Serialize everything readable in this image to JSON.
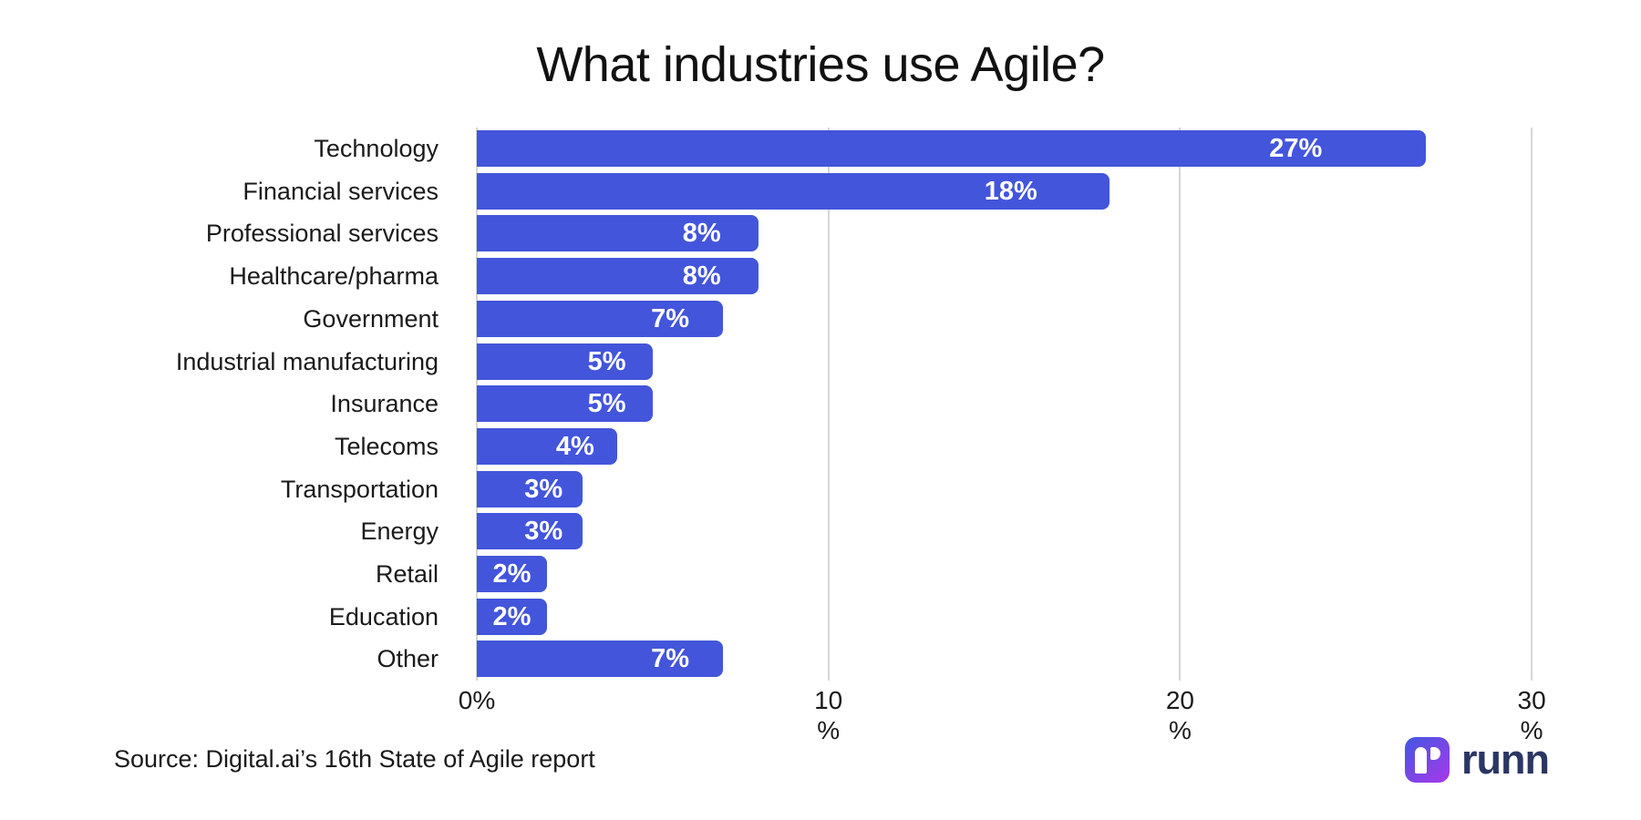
{
  "title": "What industries use Agile?",
  "source_note": "Source: Digital.ai’s 16th State of Agile report",
  "logo": {
    "wordmark": "runn",
    "wordmark_color": "#2B3663",
    "mark_gradient_start": "#4656E2",
    "mark_gradient_end": "#A43AEA"
  },
  "chart_data": {
    "type": "bar",
    "orientation": "horizontal",
    "title": "What industries use Agile?",
    "categories": [
      "Technology",
      "Financial services",
      "Professional services",
      "Healthcare/pharma",
      "Government",
      "Industrial manufacturing",
      "Insurance",
      "Telecoms",
      "Transportation",
      "Energy",
      "Retail",
      "Education",
      "Other"
    ],
    "values": [
      27,
      18,
      8,
      8,
      7,
      5,
      5,
      4,
      3,
      3,
      2,
      2,
      7
    ],
    "value_labels": [
      "27%",
      "18%",
      "8%",
      "8%",
      "7%",
      "5%",
      "5%",
      "4%",
      "3%",
      "3%",
      "2%",
      "2%",
      "7%"
    ],
    "xlabel": "%",
    "xlim": [
      0,
      30
    ],
    "xticks": [
      {
        "pct": 0,
        "line1": "0%",
        "line2": ""
      },
      {
        "pct": 10,
        "line1": "10",
        "line2": "%"
      },
      {
        "pct": 20,
        "line1": "20",
        "line2": "%"
      },
      {
        "pct": 30,
        "line1": "30",
        "line2": "%"
      }
    ],
    "grid": "vertical",
    "legend": "none",
    "bar_color": "#4355DB",
    "gridline_color": "#D6D6D6",
    "value_label_color": "#FFFFFF",
    "axis_text_color": "#1A1A1A"
  }
}
